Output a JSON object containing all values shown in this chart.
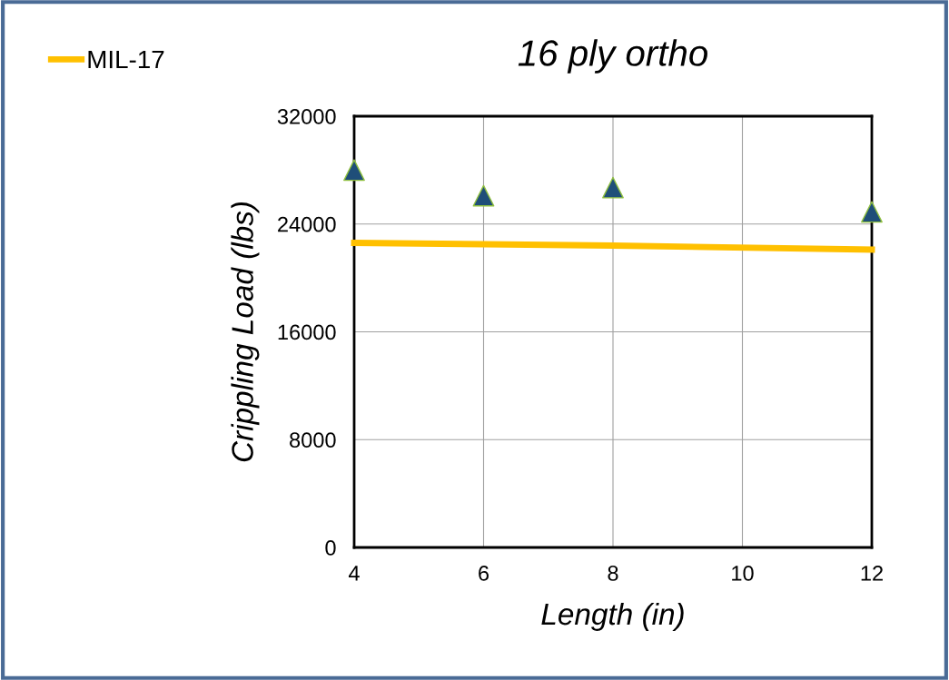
{
  "chart_data": {
    "type": "line",
    "title": "16 ply ortho",
    "xlabel": "Length (in)",
    "ylabel": "Crippling Load (lbs)",
    "series": [
      {
        "name": "MIL-17",
        "color": "#ffc000",
        "x": [
          4,
          6,
          8,
          12
        ],
        "values": [
          22600,
          22500,
          22400,
          22100
        ]
      },
      {
        "type": "scatter",
        "color": "#1f4e79",
        "marker": "triangle",
        "x": [
          4,
          6,
          8,
          12
        ],
        "values": [
          28000,
          26100,
          26700,
          24900
        ]
      }
    ],
    "xlim": [
      4,
      12
    ],
    "xticks": [
      4,
      6,
      8,
      10,
      12
    ],
    "ylim": [
      0,
      32000
    ],
    "yticks": [
      0,
      8000,
      16000,
      24000,
      32000
    ],
    "grid": true,
    "legend": "top left"
  }
}
